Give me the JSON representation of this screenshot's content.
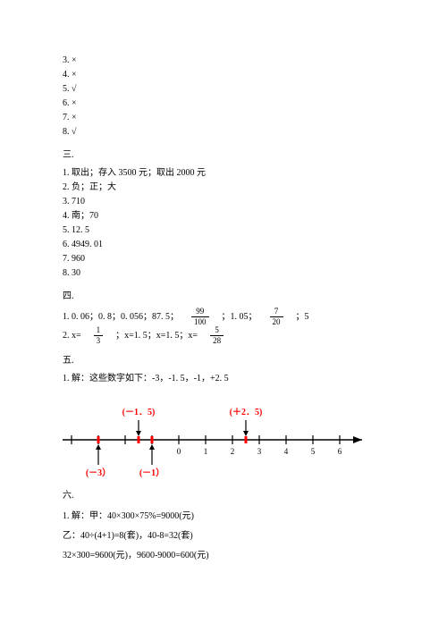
{
  "tf_items": [
    {
      "n": "3.",
      "v": "×"
    },
    {
      "n": "4.",
      "v": "×"
    },
    {
      "n": "5.",
      "v": "√"
    },
    {
      "n": "6.",
      "v": "×"
    },
    {
      "n": "7.",
      "v": "×"
    },
    {
      "n": "8.",
      "v": "√"
    }
  ],
  "s3": {
    "head": "三.",
    "l1": "1. 取出；存入 3500 元；取出 2000 元",
    "l2": "2. 负；正；大",
    "l3": "3. 710",
    "l4": "4. 南；70",
    "l5": "5. 12. 5",
    "l6": "6. 4949. 01",
    "l7": "7. 960",
    "l8": "8. 30"
  },
  "s4": {
    "head": "四.",
    "p1a": "1. 0. 06；0. 8；0. 056；87. 5；",
    "f1n": "99",
    "f1d": "100",
    "p1b": "；1. 05；",
    "f2n": "7",
    "f2d": "20",
    "p1c": "；5",
    "p2a": "2. x=",
    "f3n": "1",
    "f3d": "3",
    "p2b": "；x=1. 5；x=1. 5；x=",
    "f4n": "5",
    "f4d": "28"
  },
  "s5": {
    "head": "五.",
    "l1": "1. 解：这些数字如下：-3，-1. 5，-1，+2. 5",
    "nl": {
      "ticks": [
        "-4",
        "-3",
        "-2",
        "-1",
        "0",
        "1",
        "2",
        "3",
        "4",
        "5",
        "6"
      ],
      "points": [
        {
          "value": -3,
          "label": "(－3）",
          "pos": "below",
          "color": "#ff0000"
        },
        {
          "value": -1.5,
          "label": "(－1．5)",
          "pos": "above",
          "color": "#ff0000"
        },
        {
          "value": -1,
          "label": "(－1）",
          "pos": "below",
          "color": "#ff0000"
        },
        {
          "value": 2.5,
          "label": "(＋2．5)",
          "pos": "above",
          "color": "#ff0000"
        }
      ],
      "axis_color": "#000000",
      "label_font": "10px"
    }
  },
  "s6": {
    "head": "六.",
    "l1": "1. 解：甲：40×300×75%=9000(元)",
    "l2": "乙：40÷(4+1)=8(套)，40-8=32(套)",
    "l3": "32×300=9600(元)，9600-9000=600(元)"
  }
}
